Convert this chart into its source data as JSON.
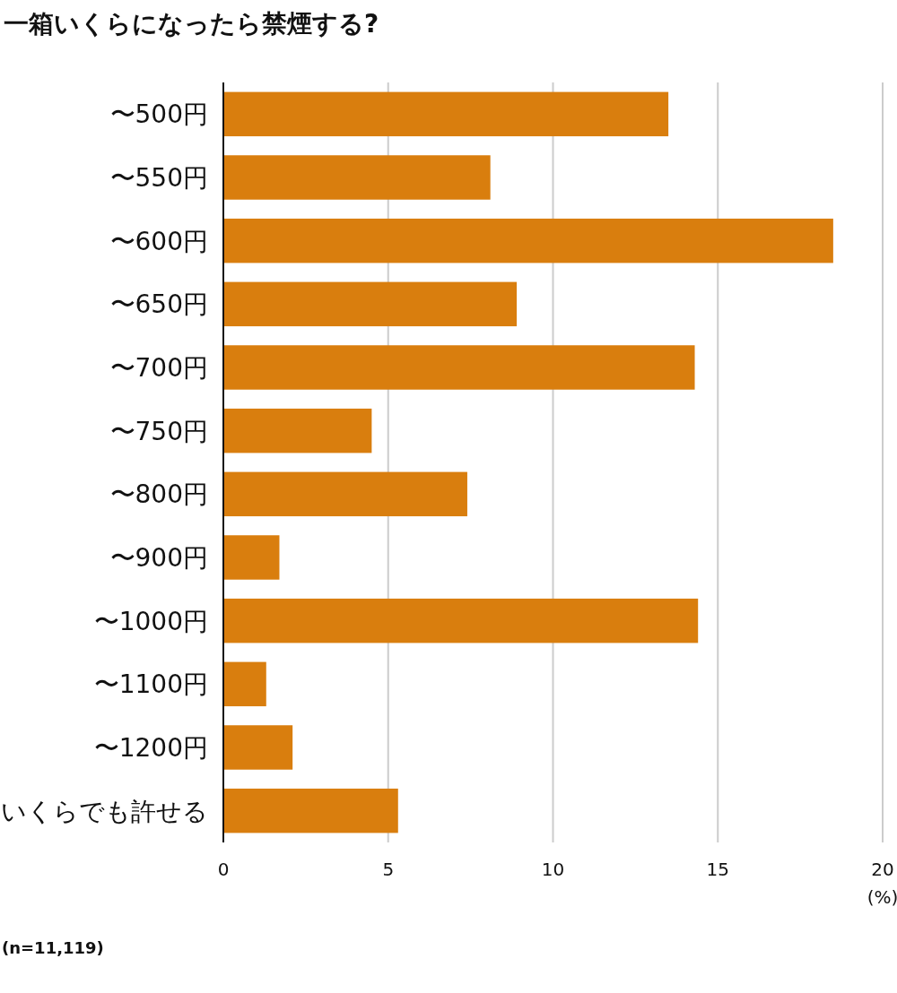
{
  "chart_data": {
    "type": "bar",
    "orientation": "horizontal",
    "title": "一箱いくらになったら禁煙する?",
    "xlabel": "(%)",
    "categories": [
      "〜500円",
      "〜550円",
      "〜600円",
      "〜650円",
      "〜700円",
      "〜750円",
      "〜800円",
      "〜900円",
      "〜1000円",
      "〜1100円",
      "〜1200円",
      "いくらでも許せる"
    ],
    "values": [
      13.5,
      8.1,
      18.5,
      8.9,
      14.3,
      4.5,
      7.4,
      1.7,
      14.4,
      1.3,
      2.1,
      5.3
    ],
    "color": "#d97e0e",
    "xlim": [
      0,
      20
    ],
    "xticks": [
      0,
      5,
      10,
      15,
      20
    ],
    "grid": "x",
    "annotations": [
      "(n=11,119)"
    ]
  }
}
